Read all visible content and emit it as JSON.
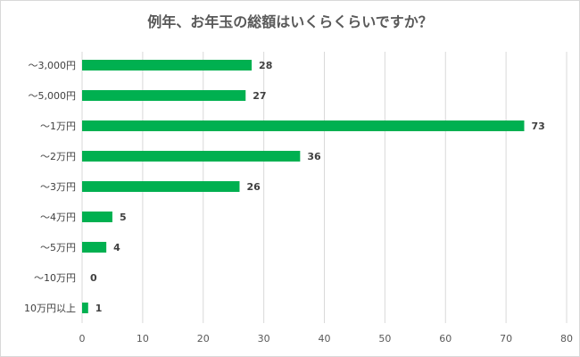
{
  "chart_data": {
    "type": "bar",
    "orientation": "horizontal",
    "title": "例年、お年玉の総額はいくらくらいですか？",
    "categories": [
      "〜3,000円",
      "〜5,000円",
      "〜1万円",
      "〜2万円",
      "〜3万円",
      "〜4万円",
      "〜5万円",
      "〜10万円",
      "10万円以上"
    ],
    "values": [
      28,
      27,
      73,
      36,
      26,
      5,
      4,
      0,
      1
    ],
    "xlim": [
      0,
      80
    ],
    "xticks": [
      0,
      10,
      20,
      30,
      40,
      50,
      60,
      70,
      80
    ],
    "xlabel": "",
    "ylabel": "",
    "grid": true,
    "bar_color": "#00B050"
  }
}
